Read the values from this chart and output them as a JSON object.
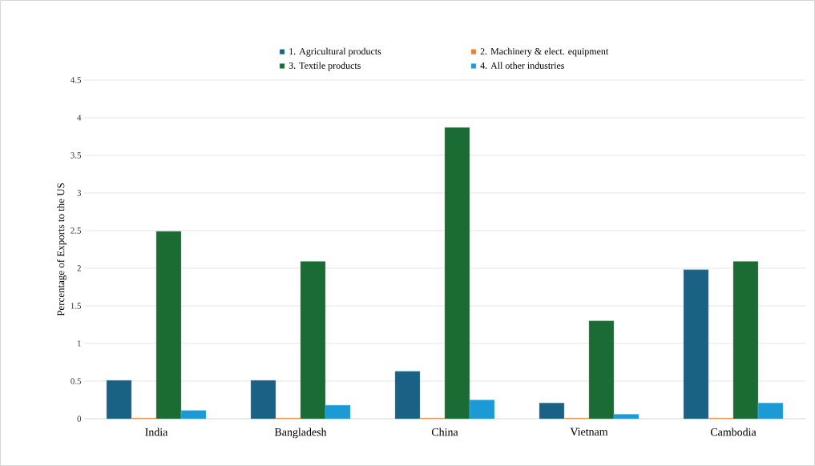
{
  "chart_data": {
    "type": "bar",
    "ylabel": "Percentage of Exports to the US",
    "categories": [
      "India",
      "Bangladesh",
      "China",
      "Vietnam",
      "Cambodia"
    ],
    "series": [
      {
        "name": "1. Agricultural products",
        "color": "#1a6285",
        "values": [
          0.51,
          0.51,
          0.63,
          0.21,
          1.98
        ]
      },
      {
        "name": "2. Machinery & elect. equipment",
        "color": "#ed7d31",
        "values": [
          0.01,
          0.01,
          0.01,
          0.01,
          0.01
        ]
      },
      {
        "name": "3. Textile products",
        "color": "#1b6b34",
        "values": [
          2.49,
          2.09,
          3.87,
          1.3,
          2.09
        ]
      },
      {
        "name": "4. All other industries",
        "color": "#1c9ad6",
        "values": [
          0.11,
          0.18,
          0.25,
          0.06,
          0.21
        ]
      }
    ],
    "ylim": [
      0,
      4.5
    ],
    "yticks": [
      0,
      0.5,
      1,
      1.5,
      2,
      2.5,
      3,
      3.5,
      4,
      4.5
    ],
    "grid": "y",
    "legend": "top"
  }
}
